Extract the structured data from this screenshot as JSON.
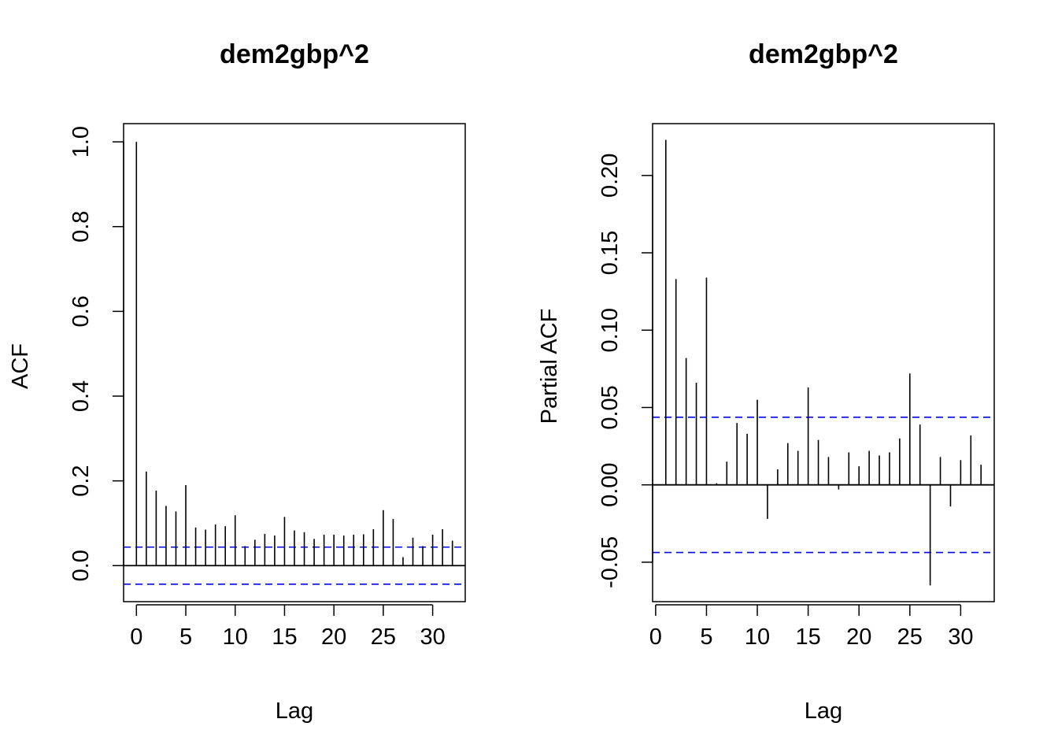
{
  "chart_data": [
    {
      "type": "bar",
      "style": "acf-spikes",
      "title": "dem2gbp^2",
      "xlabel": "Lag",
      "ylabel": "ACF",
      "xlim": [
        -1.3,
        33.3
      ],
      "ylim": [
        -0.085,
        1.043
      ],
      "x_ticks": [
        "0",
        "5",
        "10",
        "15",
        "20",
        "25",
        "30"
      ],
      "y_ticks": [
        "0.0",
        "0.2",
        "0.4",
        "0.6",
        "0.8",
        "1.0"
      ],
      "ci": 0.0437,
      "ci_color": "#0000ff",
      "bar_color": "#000000",
      "lags": [
        0,
        1,
        2,
        3,
        4,
        5,
        6,
        7,
        8,
        9,
        10,
        11,
        12,
        13,
        14,
        15,
        16,
        17,
        18,
        19,
        20,
        21,
        22,
        23,
        24,
        25,
        26,
        27,
        28,
        29,
        30,
        31,
        32
      ],
      "values": [
        1.0,
        0.222,
        0.177,
        0.141,
        0.128,
        0.19,
        0.09,
        0.085,
        0.097,
        0.093,
        0.119,
        0.046,
        0.061,
        0.075,
        0.071,
        0.115,
        0.083,
        0.079,
        0.063,
        0.073,
        0.073,
        0.071,
        0.073,
        0.074,
        0.086,
        0.131,
        0.11,
        0.02,
        0.066,
        0.046,
        0.073,
        0.086,
        0.059
      ],
      "grid": false
    },
    {
      "type": "bar",
      "style": "acf-spikes",
      "title": "dem2gbp^2",
      "xlabel": "Lag",
      "ylabel": "Partial ACF",
      "xlim": [
        -0.3,
        33.3
      ],
      "ylim": [
        -0.0755,
        0.2335
      ],
      "x_ticks": [
        "0",
        "5",
        "10",
        "15",
        "20",
        "25",
        "30"
      ],
      "y_ticks": [
        "-0.05",
        "0.00",
        "0.05",
        "0.10",
        "0.15",
        "0.20"
      ],
      "ci": 0.0437,
      "ci_color": "#0000ff",
      "bar_color": "#000000",
      "lags": [
        1,
        2,
        3,
        4,
        5,
        6,
        7,
        8,
        9,
        10,
        11,
        12,
        13,
        14,
        15,
        16,
        17,
        18,
        19,
        20,
        21,
        22,
        23,
        24,
        25,
        26,
        27,
        28,
        29,
        30,
        31,
        32
      ],
      "values": [
        0.223,
        0.133,
        0.082,
        0.066,
        0.134,
        0.001,
        0.015,
        0.04,
        0.033,
        0.055,
        -0.022,
        0.01,
        0.027,
        0.022,
        0.063,
        0.029,
        0.018,
        -0.003,
        0.021,
        0.012,
        0.022,
        0.019,
        0.021,
        0.03,
        0.072,
        0.039,
        -0.065,
        0.018,
        -0.014,
        0.016,
        0.032,
        0.013
      ],
      "grid": false
    }
  ]
}
